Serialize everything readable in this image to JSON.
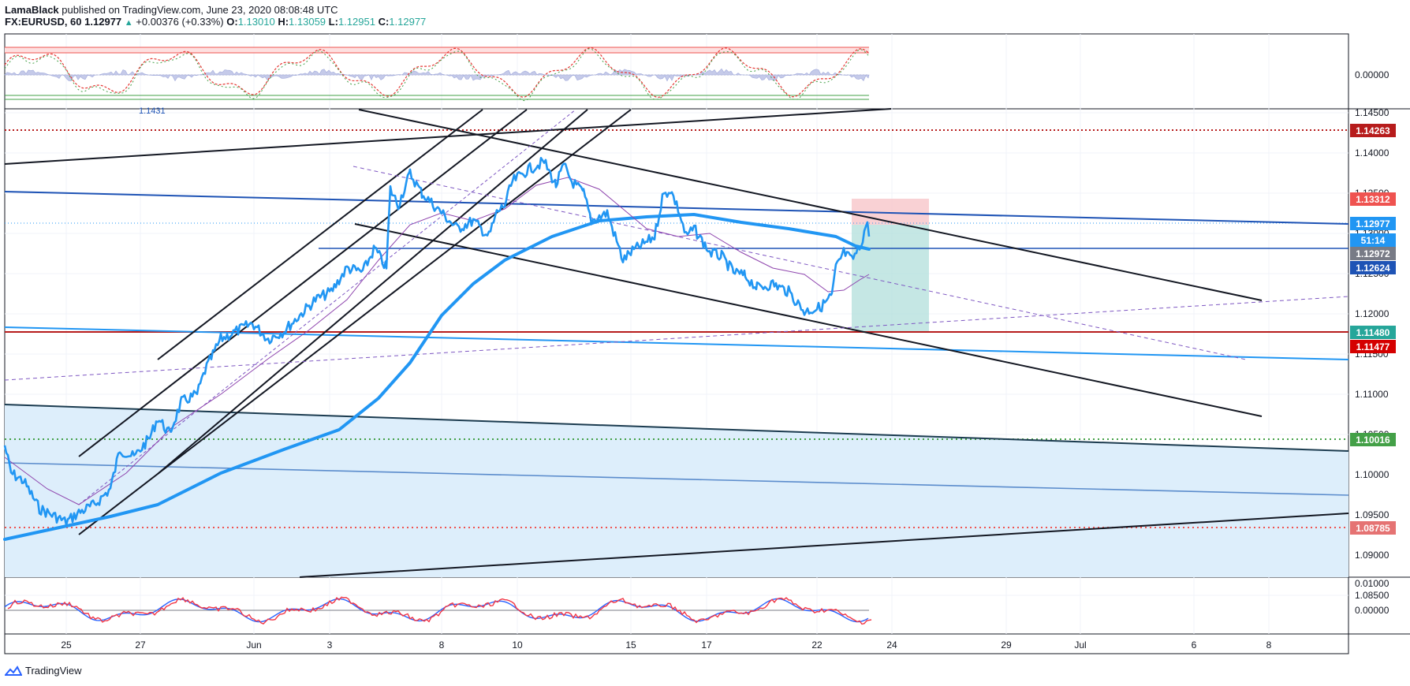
{
  "header": {
    "author": "LamaBlack",
    "published": "published on TradingView.com, June 23, 2020 08:08:48 UTC",
    "symbol": "FX:EURUSD, 60",
    "last": "1.12977",
    "change": "+0.00376 (+0.33%)",
    "open_label": "O:",
    "open": "1.13010",
    "high_label": "H:",
    "high": "1.13059",
    "low_label": "L:",
    "low": "1.12951",
    "close_label": "C:",
    "close": "1.12977"
  },
  "top_panel": {
    "axis_label": "0.00000",
    "left_note": "1.1431"
  },
  "bottom_panel": {
    "axis_labels": [
      "0.01000",
      "0.00000"
    ]
  },
  "price_axis": {
    "ticks": [
      "1.14500",
      "1.14000",
      "1.13500",
      "1.13000",
      "1.12500",
      "1.12000",
      "1.11500",
      "1.11000",
      "1.10500",
      "1.10000",
      "1.09500",
      "1.09000",
      "1.08500"
    ],
    "tags": [
      {
        "text": "1.14263",
        "bg": "#b71c1c",
        "fg": "#ffffff"
      },
      {
        "text": "1.13312",
        "bg": "#ef5350",
        "fg": "#ffffff"
      },
      {
        "text": "1.12977",
        "bg": "#2196f3",
        "fg": "#ffffff"
      },
      {
        "text": "51:14",
        "bg": "#2196f3",
        "fg": "#ffffff"
      },
      {
        "text": "1.12972",
        "bg": "#787b86",
        "fg": "#ffffff"
      },
      {
        "text": "1.12624",
        "bg": "#1e53b5",
        "fg": "#ffffff"
      },
      {
        "text": "1.11480",
        "bg": "#26a69a",
        "fg": "#ffffff"
      },
      {
        "text": "1.11477",
        "bg": "#d50000",
        "fg": "#ffffff"
      },
      {
        "text": "1.10016",
        "bg": "#43a047",
        "fg": "#ffffff"
      },
      {
        "text": "1.08785",
        "bg": "#e57373",
        "fg": "#ffffff"
      }
    ]
  },
  "time_axis": [
    "25",
    "27",
    "Jun",
    "3",
    "8",
    "10",
    "15",
    "17",
    "22",
    "24",
    "29",
    "Jul",
    "6",
    "8"
  ],
  "chart_data": {
    "type": "line",
    "title": "FX:EURUSD, 60",
    "x": [
      "May 25",
      "May 27",
      "Jun 1",
      "Jun 3",
      "Jun 8",
      "Jun 10",
      "Jun 15",
      "Jun 17",
      "Jun 22",
      "Jun 23"
    ],
    "series": [
      {
        "values": [
          1.0905,
          1.095,
          1.112,
          1.123,
          1.131,
          1.1385,
          1.125,
          1.127,
          1.1195,
          1.12977
        ]
      }
    ],
    "ylim": [
      1.083,
      1.146
    ],
    "levels": [
      1.14263,
      1.13312,
      1.12977,
      1.12972,
      1.12624,
      1.1148,
      1.11477,
      1.10016,
      1.08785
    ],
    "colors": {
      "price": "#2196f3",
      "resistance": "#b71c1c",
      "support": "#43a047",
      "zone": "#e3f2fd"
    }
  },
  "footer": {
    "brand": "TradingView"
  }
}
